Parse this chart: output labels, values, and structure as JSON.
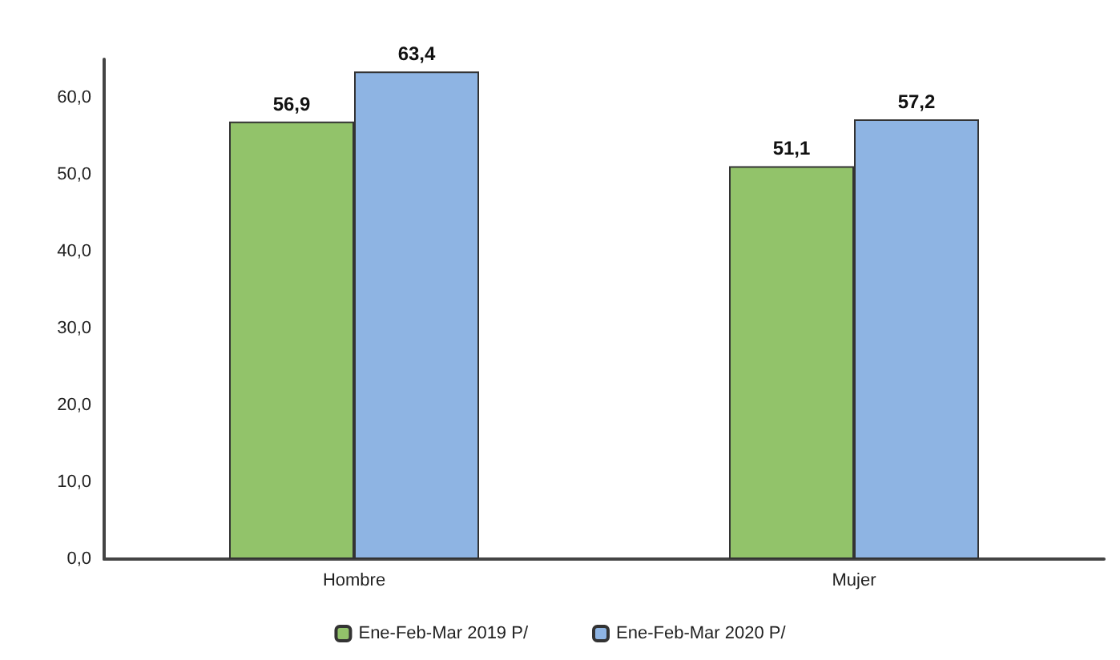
{
  "chart_data": {
    "type": "bar",
    "categories": [
      "Hombre",
      "Mujer"
    ],
    "series": [
      {
        "name": "Ene-Feb-Mar 2019 P/",
        "color": "#92c36a",
        "values": [
          56.9,
          51.1
        ]
      },
      {
        "name": "Ene-Feb-Mar 2020 P/",
        "color": "#8eb4e3",
        "values": [
          63.4,
          57.2
        ]
      }
    ],
    "ylim": [
      0,
      65
    ],
    "yticks": [
      {
        "value": 0,
        "label": "0,0"
      },
      {
        "value": 10,
        "label": "10,0"
      },
      {
        "value": 20,
        "label": "20,0"
      },
      {
        "value": 30,
        "label": "30,0"
      },
      {
        "value": 40,
        "label": "40,0"
      },
      {
        "value": 50,
        "label": "50,0"
      },
      {
        "value": 60,
        "label": "60,0"
      }
    ],
    "value_labels": [
      [
        "56,9",
        "51,1"
      ],
      [
        "63,4",
        "57,2"
      ]
    ],
    "grid": false,
    "legend": "bottom"
  }
}
